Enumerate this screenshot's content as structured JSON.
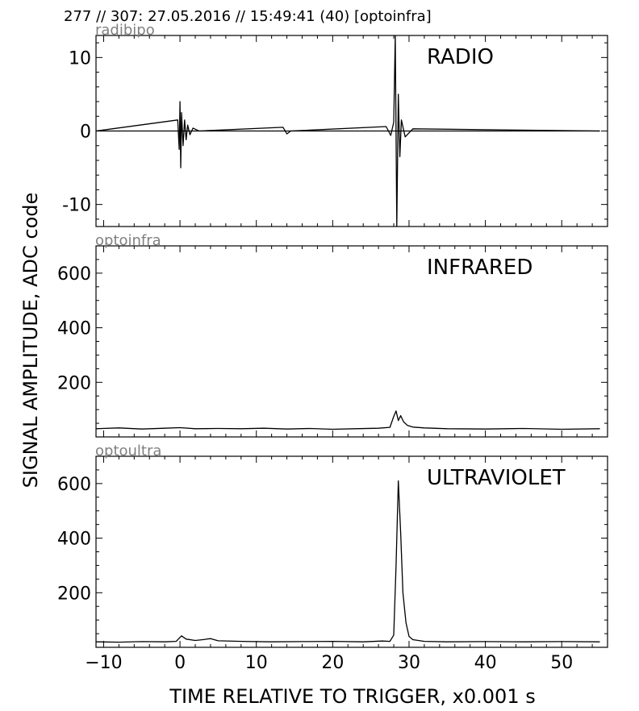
{
  "header": {
    "text": "277 // 307:   27.05.2016 // 15:49:41 (40)  [optoinfra]"
  },
  "ylabel": "SIGNAL AMPLITUDE,  ADC code",
  "xlabel": "TIME RELATIVE TO TRIGGER,   x0.001 s",
  "chart_data": [
    {
      "type": "line",
      "tag": "radibipo",
      "title": "RADIO",
      "xlim": [
        -11,
        56
      ],
      "ylim": [
        -13,
        13
      ],
      "yticks": [
        10,
        0,
        -10
      ],
      "yticklabels": [
        "10",
        "0",
        "-10"
      ],
      "xticks": [
        -10,
        0,
        10,
        20,
        30,
        40,
        50
      ],
      "baseline": 0,
      "x": [
        -11,
        -0.3,
        -0.1,
        0,
        0.1,
        0.2,
        0.4,
        0.6,
        0.8,
        1.0,
        1.3,
        1.7,
        2.5,
        13.5,
        14.0,
        14.5,
        27.0,
        27.6,
        28.0,
        28.2,
        28.4,
        28.6,
        28.8,
        29.0,
        29.5,
        30.5,
        55
      ],
      "y": [
        0,
        1.5,
        -2.5,
        4,
        -5,
        2.5,
        -2,
        1.5,
        -1.2,
        0.8,
        -0.5,
        0.4,
        0,
        0.5,
        -0.4,
        0,
        0.6,
        -0.6,
        1.2,
        13,
        -13,
        5,
        -3.5,
        1.5,
        -0.8,
        0.3,
        0
      ]
    },
    {
      "type": "line",
      "tag": "optoinfra",
      "title": "INFRARED",
      "xlim": [
        -11,
        56
      ],
      "ylim": [
        0,
        700
      ],
      "yticks": [
        600,
        400,
        200
      ],
      "yticklabels": [
        "600",
        "400",
        "200"
      ],
      "xticks": [
        -10,
        0,
        10,
        20,
        30,
        40,
        50
      ],
      "x": [
        -11,
        -8,
        -5,
        -2,
        0,
        2,
        5,
        8,
        11,
        14,
        17,
        20,
        23,
        26,
        27.5,
        28.0,
        28.3,
        28.6,
        28.9,
        29.3,
        29.8,
        30.5,
        32,
        35,
        40,
        45,
        50,
        55
      ],
      "y": [
        30,
        33,
        29,
        32,
        34,
        30,
        31,
        30,
        32,
        29,
        31,
        28,
        30,
        32,
        35,
        75,
        95,
        60,
        78,
        55,
        42,
        36,
        33,
        30,
        29,
        31,
        28,
        30
      ]
    },
    {
      "type": "line",
      "tag": "optoultra",
      "title": "ULTRAVIOLET",
      "xlim": [
        -11,
        56
      ],
      "ylim": [
        0,
        700
      ],
      "yticks": [
        600,
        400,
        200
      ],
      "yticklabels": [
        "600",
        "400",
        "200"
      ],
      "xticks": [
        -10,
        0,
        10,
        20,
        30,
        40,
        50
      ],
      "xticklabels": [
        "−10",
        "0",
        "10",
        "20",
        "30",
        "40",
        "50"
      ],
      "x": [
        -11,
        -8,
        -5,
        -2,
        -0.5,
        0.2,
        0.8,
        2,
        3,
        4,
        5,
        8,
        12,
        16,
        20,
        24,
        26.5,
        27.5,
        28.0,
        28.3,
        28.6,
        28.9,
        29.2,
        29.6,
        30.0,
        30.5,
        32,
        35,
        40,
        45,
        50,
        55
      ],
      "y": [
        20,
        19,
        21,
        20,
        22,
        42,
        30,
        25,
        28,
        32,
        24,
        22,
        20,
        21,
        22,
        20,
        23,
        22,
        45,
        300,
        610,
        420,
        200,
        90,
        40,
        28,
        22,
        20,
        21,
        20,
        21,
        20
      ]
    }
  ]
}
